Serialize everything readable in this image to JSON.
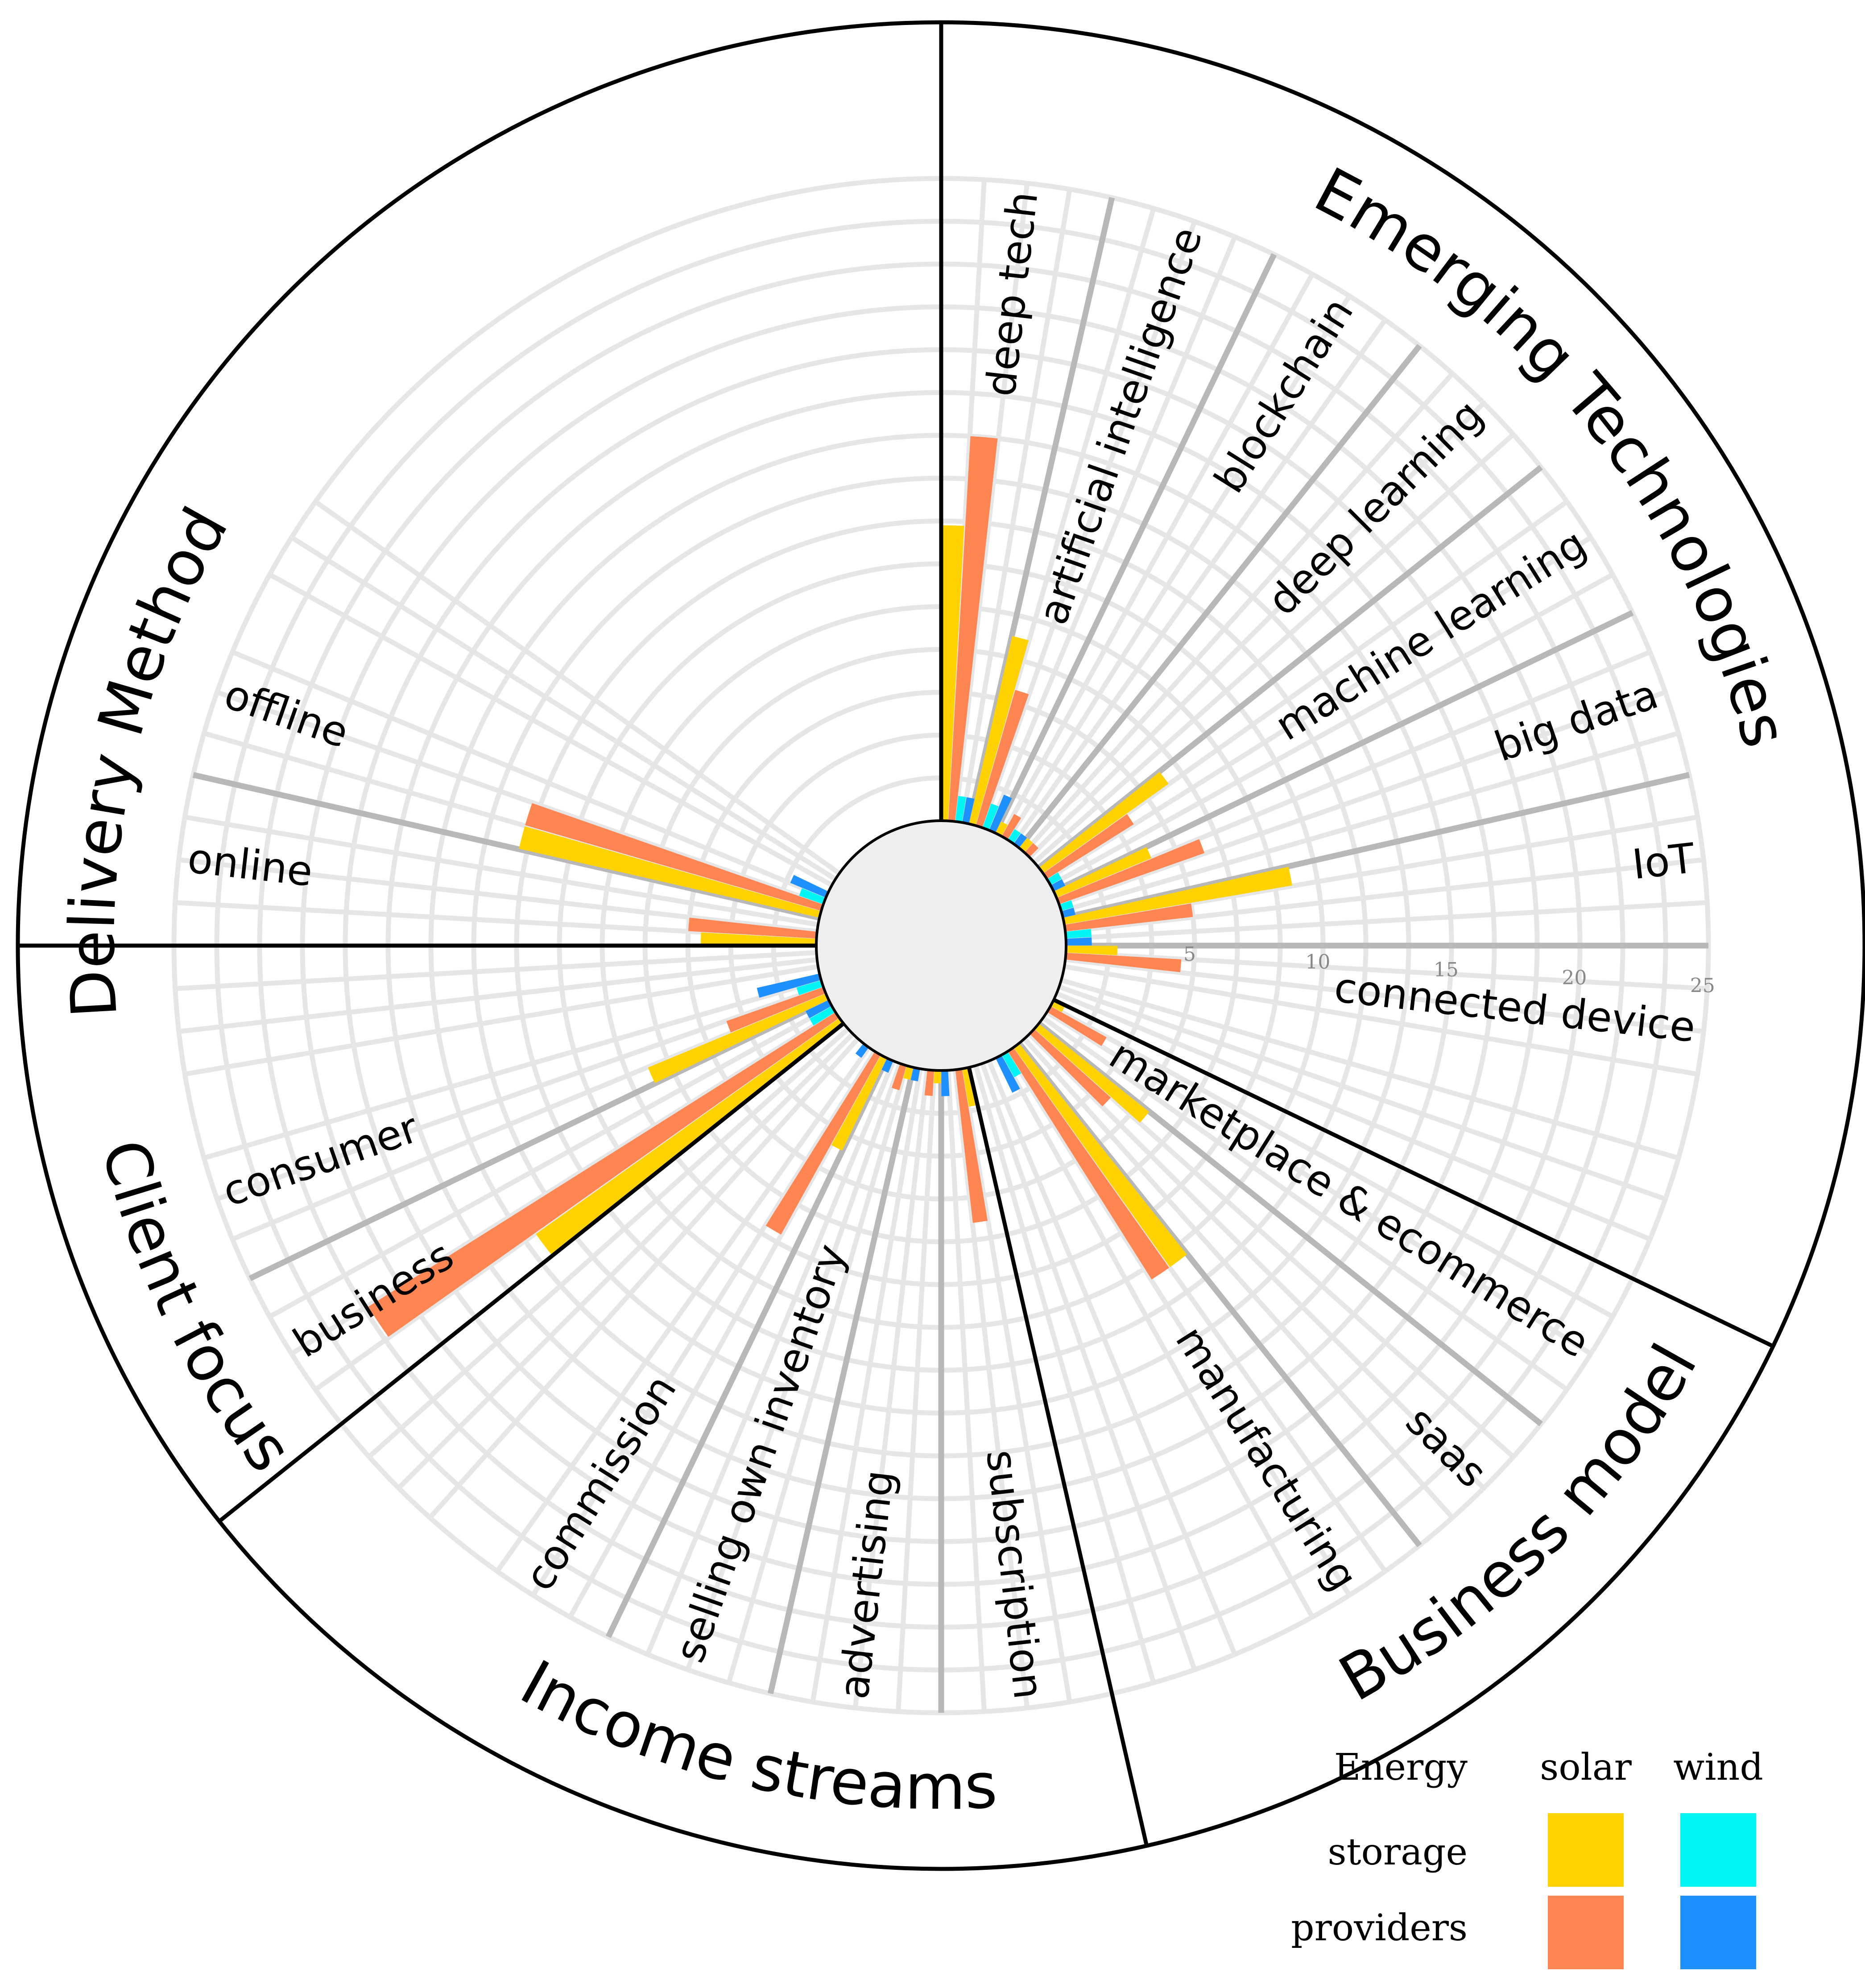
{
  "chart_data": {
    "type": "bar",
    "subtype": "radial-grouped-bar",
    "scale": {
      "min": 0,
      "max": 25
    },
    "ticks": [
      "5",
      "10",
      "15",
      "20",
      "25"
    ],
    "series": [
      {
        "key": "solar_storage",
        "name": "solar storage",
        "color": "#FFD200"
      },
      {
        "key": "solar_providers",
        "name": "solar providers",
        "color": "#FF8552"
      },
      {
        "key": "wind_storage",
        "name": "wind storage",
        "color": "#00F5F5"
      },
      {
        "key": "wind_providers",
        "name": "wind providers",
        "color": "#1E90FF"
      }
    ],
    "groups": [
      {
        "name": "Emerging Technologies",
        "categories": [
          {
            "name": "deep tech",
            "solar_storage": 11.5,
            "solar_providers": 15.0,
            "wind_storage": 1.0,
            "wind_providers": 1.0
          },
          {
            "name": "artificial intelligence",
            "solar_storage": 7.5,
            "solar_providers": 5.5,
            "wind_storage": 1.0,
            "wind_providers": 1.5
          },
          {
            "name": "blockchain",
            "solar_storage": 0.5,
            "solar_providers": 1.0,
            "wind_storage": 0.5,
            "wind_providers": 0.5
          },
          {
            "name": "deep learning",
            "solar_storage": 0.5,
            "solar_providers": 0.5,
            "wind_storage": 0.0,
            "wind_providers": 0.0
          },
          {
            "name": "machine learning",
            "solar_storage": 6.0,
            "solar_providers": 4.0,
            "wind_storage": 0.5,
            "wind_providers": 0.5
          },
          {
            "name": "big data",
            "solar_storage": 4.0,
            "solar_providers": 6.0,
            "wind_storage": 0.5,
            "wind_providers": 0.5
          },
          {
            "name": "IoT",
            "solar_storage": 9.0,
            "solar_providers": 5.0,
            "wind_storage": 1.0,
            "wind_providers": 1.0
          },
          {
            "name": "connected device",
            "solar_storage": 2.0,
            "solar_providers": 4.5,
            "wind_storage": 0.0,
            "wind_providers": 0.0
          }
        ]
      },
      {
        "name": "Business model",
        "categories": [
          {
            "name": "marketplace & ecommerce",
            "solar_storage": 0.5,
            "solar_providers": 2.5,
            "wind_storage": 0.0,
            "wind_providers": 0.0
          },
          {
            "name": "saas",
            "solar_storage": 5.5,
            "solar_providers": 4.0,
            "wind_storage": 0.0,
            "wind_providers": 0.0
          },
          {
            "name": "manufacturing",
            "solar_storage": 10.5,
            "solar_providers": 10.5,
            "wind_storage": 1.0,
            "wind_providers": 1.5
          }
        ]
      },
      {
        "name": "Income streams",
        "categories": [
          {
            "name": "subscription",
            "solar_storage": 1.5,
            "solar_providers": 6.0,
            "wind_storage": 0.0,
            "wind_providers": 1.0
          },
          {
            "name": "advertising",
            "solar_storage": 0.5,
            "solar_providers": 1.0,
            "wind_storage": 0.0,
            "wind_providers": 0.5
          },
          {
            "name": "selling own inventory",
            "solar_storage": 0.5,
            "solar_providers": 1.0,
            "wind_storage": 0.0,
            "wind_providers": 0.5
          },
          {
            "name": "commission",
            "solar_storage": 4.0,
            "solar_providers": 8.0,
            "wind_storage": 0.0,
            "wind_providers": 0.5
          }
        ]
      },
      {
        "name": "Client focus",
        "categories": [
          {
            "name": "business",
            "solar_storage": 14.5,
            "solar_providers": 21.5,
            "wind_storage": 1.0,
            "wind_providers": 1.0
          },
          {
            "name": "consumer",
            "solar_storage": 7.5,
            "solar_providers": 4.0,
            "wind_storage": 1.0,
            "wind_providers": 2.5
          }
        ]
      },
      {
        "name": "Delivery Method",
        "categories": [
          {
            "name": "online",
            "solar_storage": 4.5,
            "solar_providers": 5.0,
            "wind_storage": 0.0,
            "wind_providers": 0.0
          },
          {
            "name": "offline",
            "solar_storage": 12.0,
            "solar_providers": 12.0,
            "wind_storage": 1.0,
            "wind_providers": 1.5
          }
        ]
      }
    ],
    "legend": {
      "title_lines": [
        "Energy",
        "storage",
        "providers"
      ],
      "column_headers": [
        "solar",
        "wind"
      ],
      "position": "bottom-right"
    }
  }
}
